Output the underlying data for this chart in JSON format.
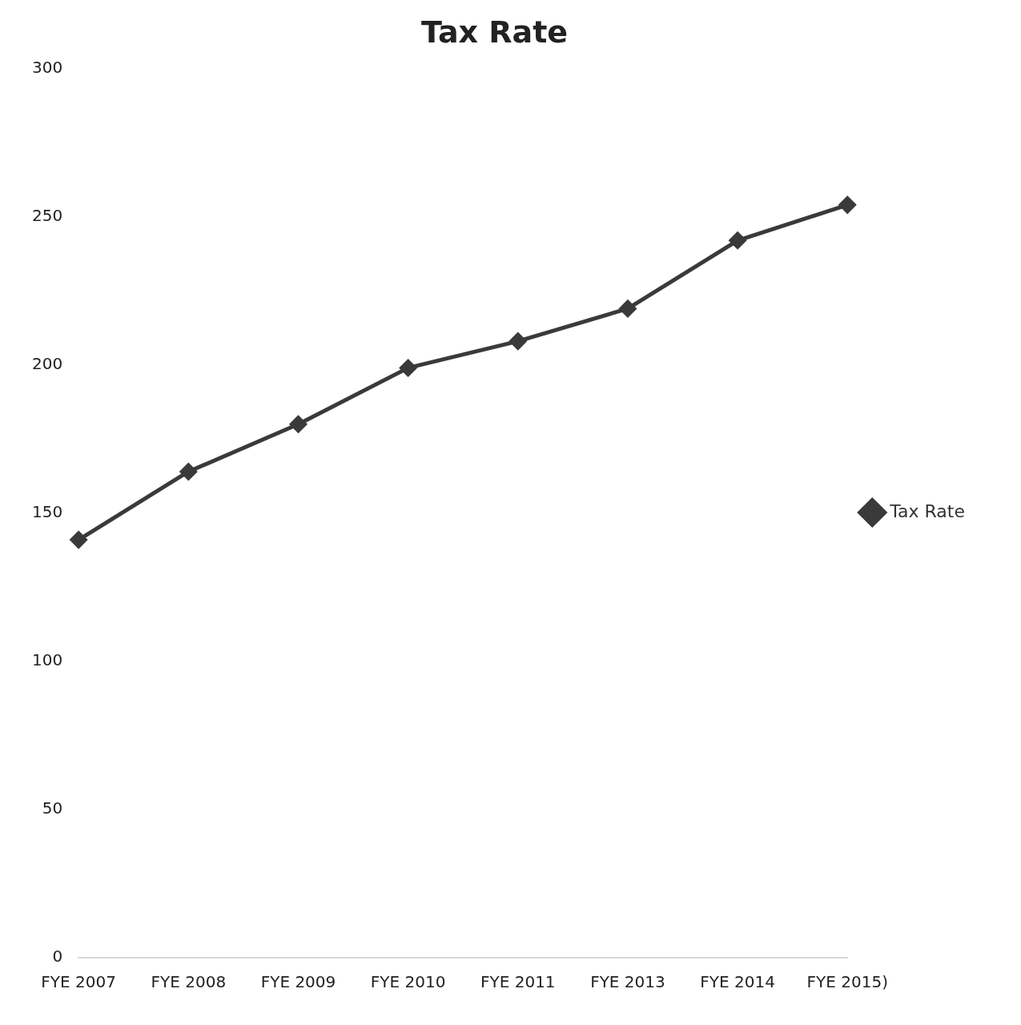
{
  "chart_data": {
    "type": "line",
    "title": "Tax Rate",
    "categories": [
      "FYE 2007",
      "FYE 2008",
      "FYE 2009",
      "FYE 2010",
      "FYE 2011",
      "FYE 2013",
      "FYE 2014",
      "FYE 2015)"
    ],
    "series": [
      {
        "name": "Tax Rate",
        "color": "#3a3a3a",
        "values": [
          141,
          164,
          180,
          199,
          208,
          219,
          242,
          254
        ]
      }
    ],
    "ylim": [
      0,
      300
    ],
    "yticks": [
      0,
      50,
      100,
      150,
      200,
      250,
      300
    ],
    "grid": false,
    "legend": "right",
    "marker": "diamond",
    "line_style": "solid"
  }
}
